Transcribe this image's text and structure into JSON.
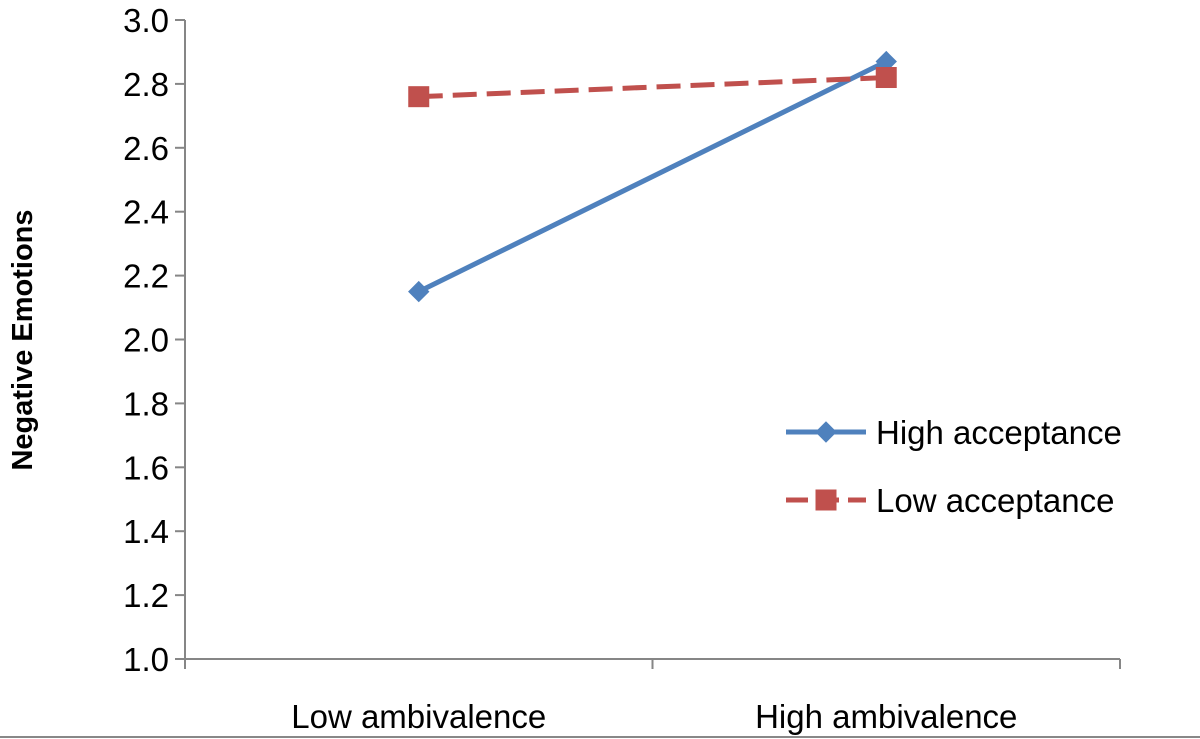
{
  "chart_data": {
    "type": "line",
    "categories": [
      "Low ambivalence",
      "High ambivalence"
    ],
    "series": [
      {
        "name": "High acceptance",
        "values": [
          2.15,
          2.87
        ],
        "color": "#4f81bd",
        "marker": "diamond",
        "dash": "solid"
      },
      {
        "name": "Low acceptance",
        "values": [
          2.76,
          2.82
        ],
        "color": "#c0504d",
        "marker": "square",
        "dash": "dashed"
      }
    ],
    "title": "",
    "xlabel": "",
    "ylabel": "Negative Emotions",
    "ylim": [
      1.0,
      3.0
    ],
    "yticks": [
      "1.0",
      "1.2",
      "1.4",
      "1.6",
      "1.8",
      "2.0",
      "2.2",
      "2.4",
      "2.6",
      "2.8",
      "3.0"
    ],
    "grid": false,
    "legend": "right"
  }
}
